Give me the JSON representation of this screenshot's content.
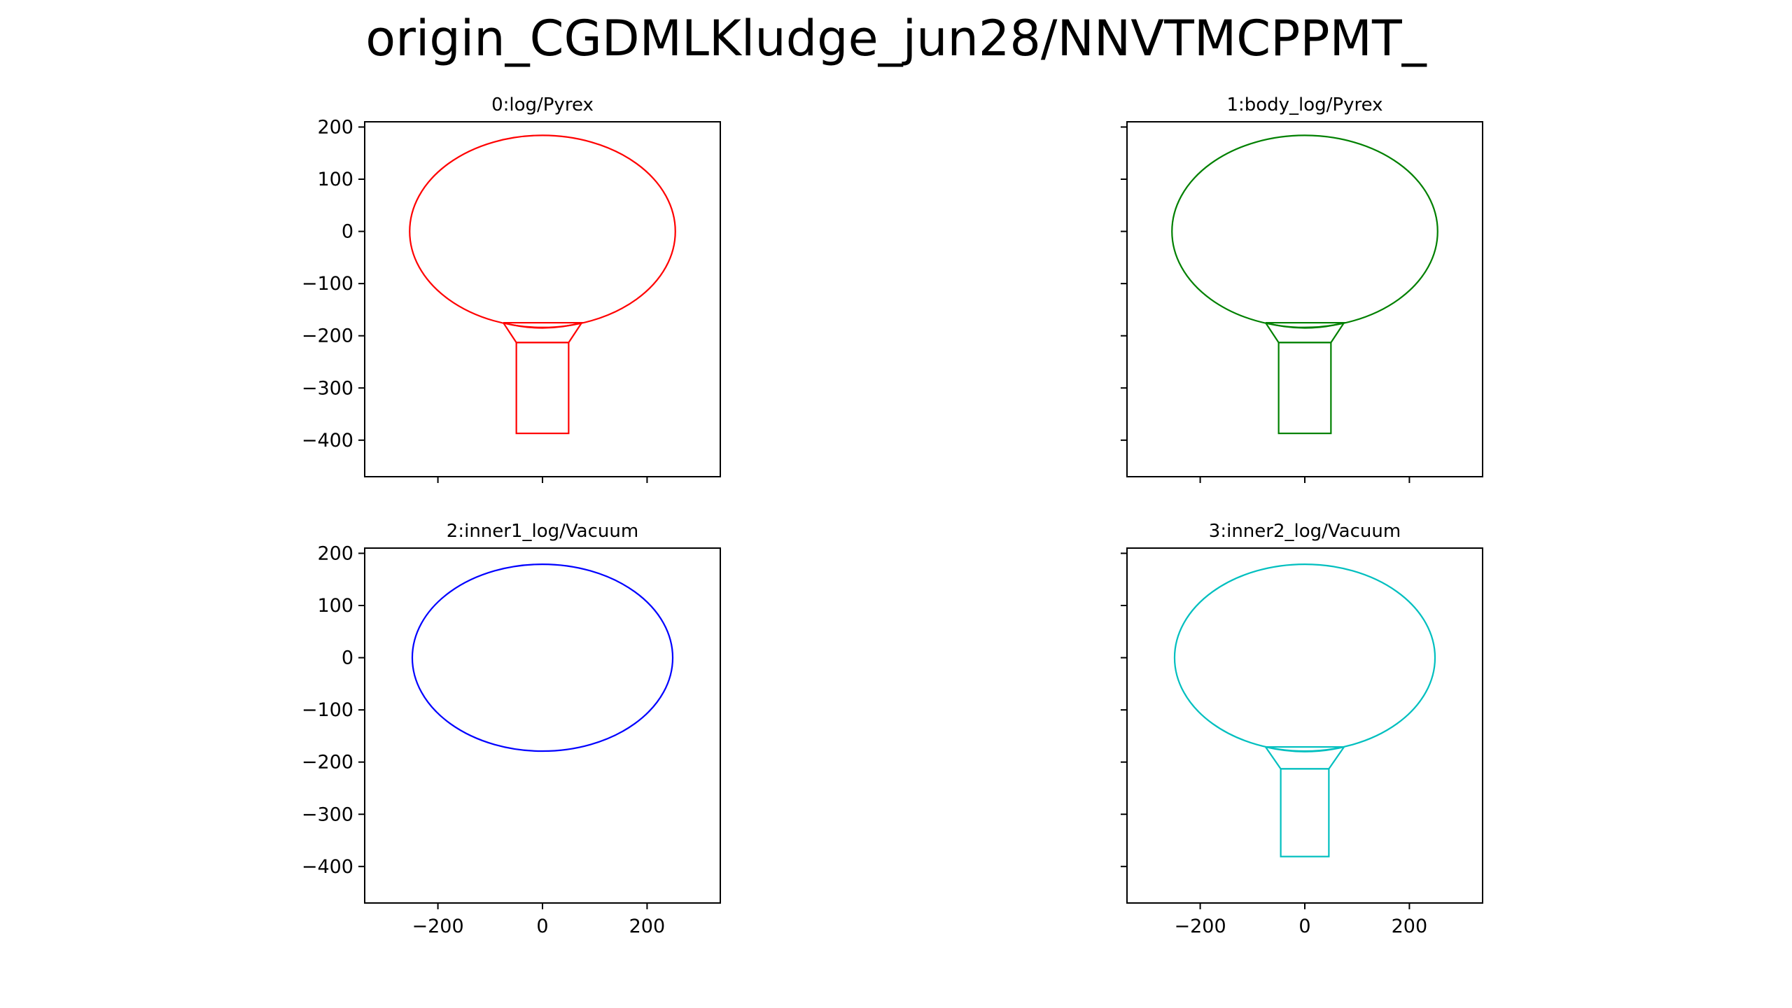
{
  "suptitle": "origin_CGDMLKludge_jun28/NNVTMCPPMT_",
  "chart_data": [
    {
      "type": "line",
      "title": "0:log/Pyrex",
      "color": "#ff0000",
      "xlim": [
        -340,
        340
      ],
      "ylim": [
        -470,
        210
      ],
      "xticks": [
        -200,
        0,
        200
      ],
      "xtick_labels_visible": false,
      "yticks": [
        200,
        100,
        0,
        -100,
        -200,
        -300,
        -400
      ],
      "ytick_labels_visible": true,
      "shapes": [
        {
          "kind": "ellipse",
          "cx": 0,
          "cy": 0,
          "rx": 254,
          "ry": 184
        },
        {
          "kind": "polyline",
          "points": [
            [
              -75,
              -175
            ],
            [
              75,
              -175
            ],
            [
              50,
              -213
            ],
            [
              -50,
              -213
            ],
            [
              -75,
              -175
            ]
          ]
        },
        {
          "kind": "arc",
          "from": [
            -75,
            -175
          ],
          "to": [
            75,
            -175
          ],
          "depth": -185
        },
        {
          "kind": "rect",
          "x0": -50,
          "y0": -387,
          "x1": 50,
          "y1": -213
        }
      ]
    },
    {
      "type": "line",
      "title": "1:body_log/Pyrex",
      "color": "#008000",
      "xlim": [
        -340,
        340
      ],
      "ylim": [
        -470,
        210
      ],
      "xticks": [
        -200,
        0,
        200
      ],
      "xtick_labels_visible": false,
      "yticks": [
        200,
        100,
        0,
        -100,
        -200,
        -300,
        -400
      ],
      "ytick_labels_visible": false,
      "shapes": [
        {
          "kind": "ellipse",
          "cx": 0,
          "cy": 0,
          "rx": 254,
          "ry": 184
        },
        {
          "kind": "polyline",
          "points": [
            [
              -75,
              -175
            ],
            [
              75,
              -175
            ],
            [
              50,
              -213
            ],
            [
              -50,
              -213
            ],
            [
              -75,
              -175
            ]
          ]
        },
        {
          "kind": "arc",
          "from": [
            -75,
            -175
          ],
          "to": [
            75,
            -175
          ],
          "depth": -185
        },
        {
          "kind": "rect",
          "x0": -50,
          "y0": -387,
          "x1": 50,
          "y1": -213
        }
      ]
    },
    {
      "type": "line",
      "title": "2:inner1_log/Vacuum",
      "color": "#0000ff",
      "xlim": [
        -340,
        340
      ],
      "ylim": [
        -470,
        210
      ],
      "xticks": [
        -200,
        0,
        200
      ],
      "xtick_labels_visible": true,
      "yticks": [
        200,
        100,
        0,
        -100,
        -200,
        -300,
        -400
      ],
      "ytick_labels_visible": true,
      "shapes": [
        {
          "kind": "ellipse",
          "cx": 0,
          "cy": 0,
          "rx": 249,
          "ry": 179
        }
      ]
    },
    {
      "type": "line",
      "title": "3:inner2_log/Vacuum",
      "color": "#00bfbf",
      "xlim": [
        -340,
        340
      ],
      "ylim": [
        -470,
        210
      ],
      "xticks": [
        -200,
        0,
        200
      ],
      "xtick_labels_visible": true,
      "yticks": [
        200,
        100,
        0,
        -100,
        -200,
        -300,
        -400
      ],
      "ytick_labels_visible": false,
      "shapes": [
        {
          "kind": "ellipse",
          "cx": 0,
          "cy": 0,
          "rx": 249,
          "ry": 179
        },
        {
          "kind": "polyline",
          "points": [
            [
              -75,
              -171
            ],
            [
              75,
              -171
            ],
            [
              46,
              -213
            ],
            [
              -46,
              -213
            ],
            [
              -75,
              -171
            ]
          ]
        },
        {
          "kind": "arc",
          "from": [
            -75,
            -171
          ],
          "to": [
            75,
            -171
          ],
          "depth": -180
        },
        {
          "kind": "rect",
          "x0": -46,
          "y0": -381,
          "x1": 46,
          "y1": -213
        }
      ]
    }
  ]
}
